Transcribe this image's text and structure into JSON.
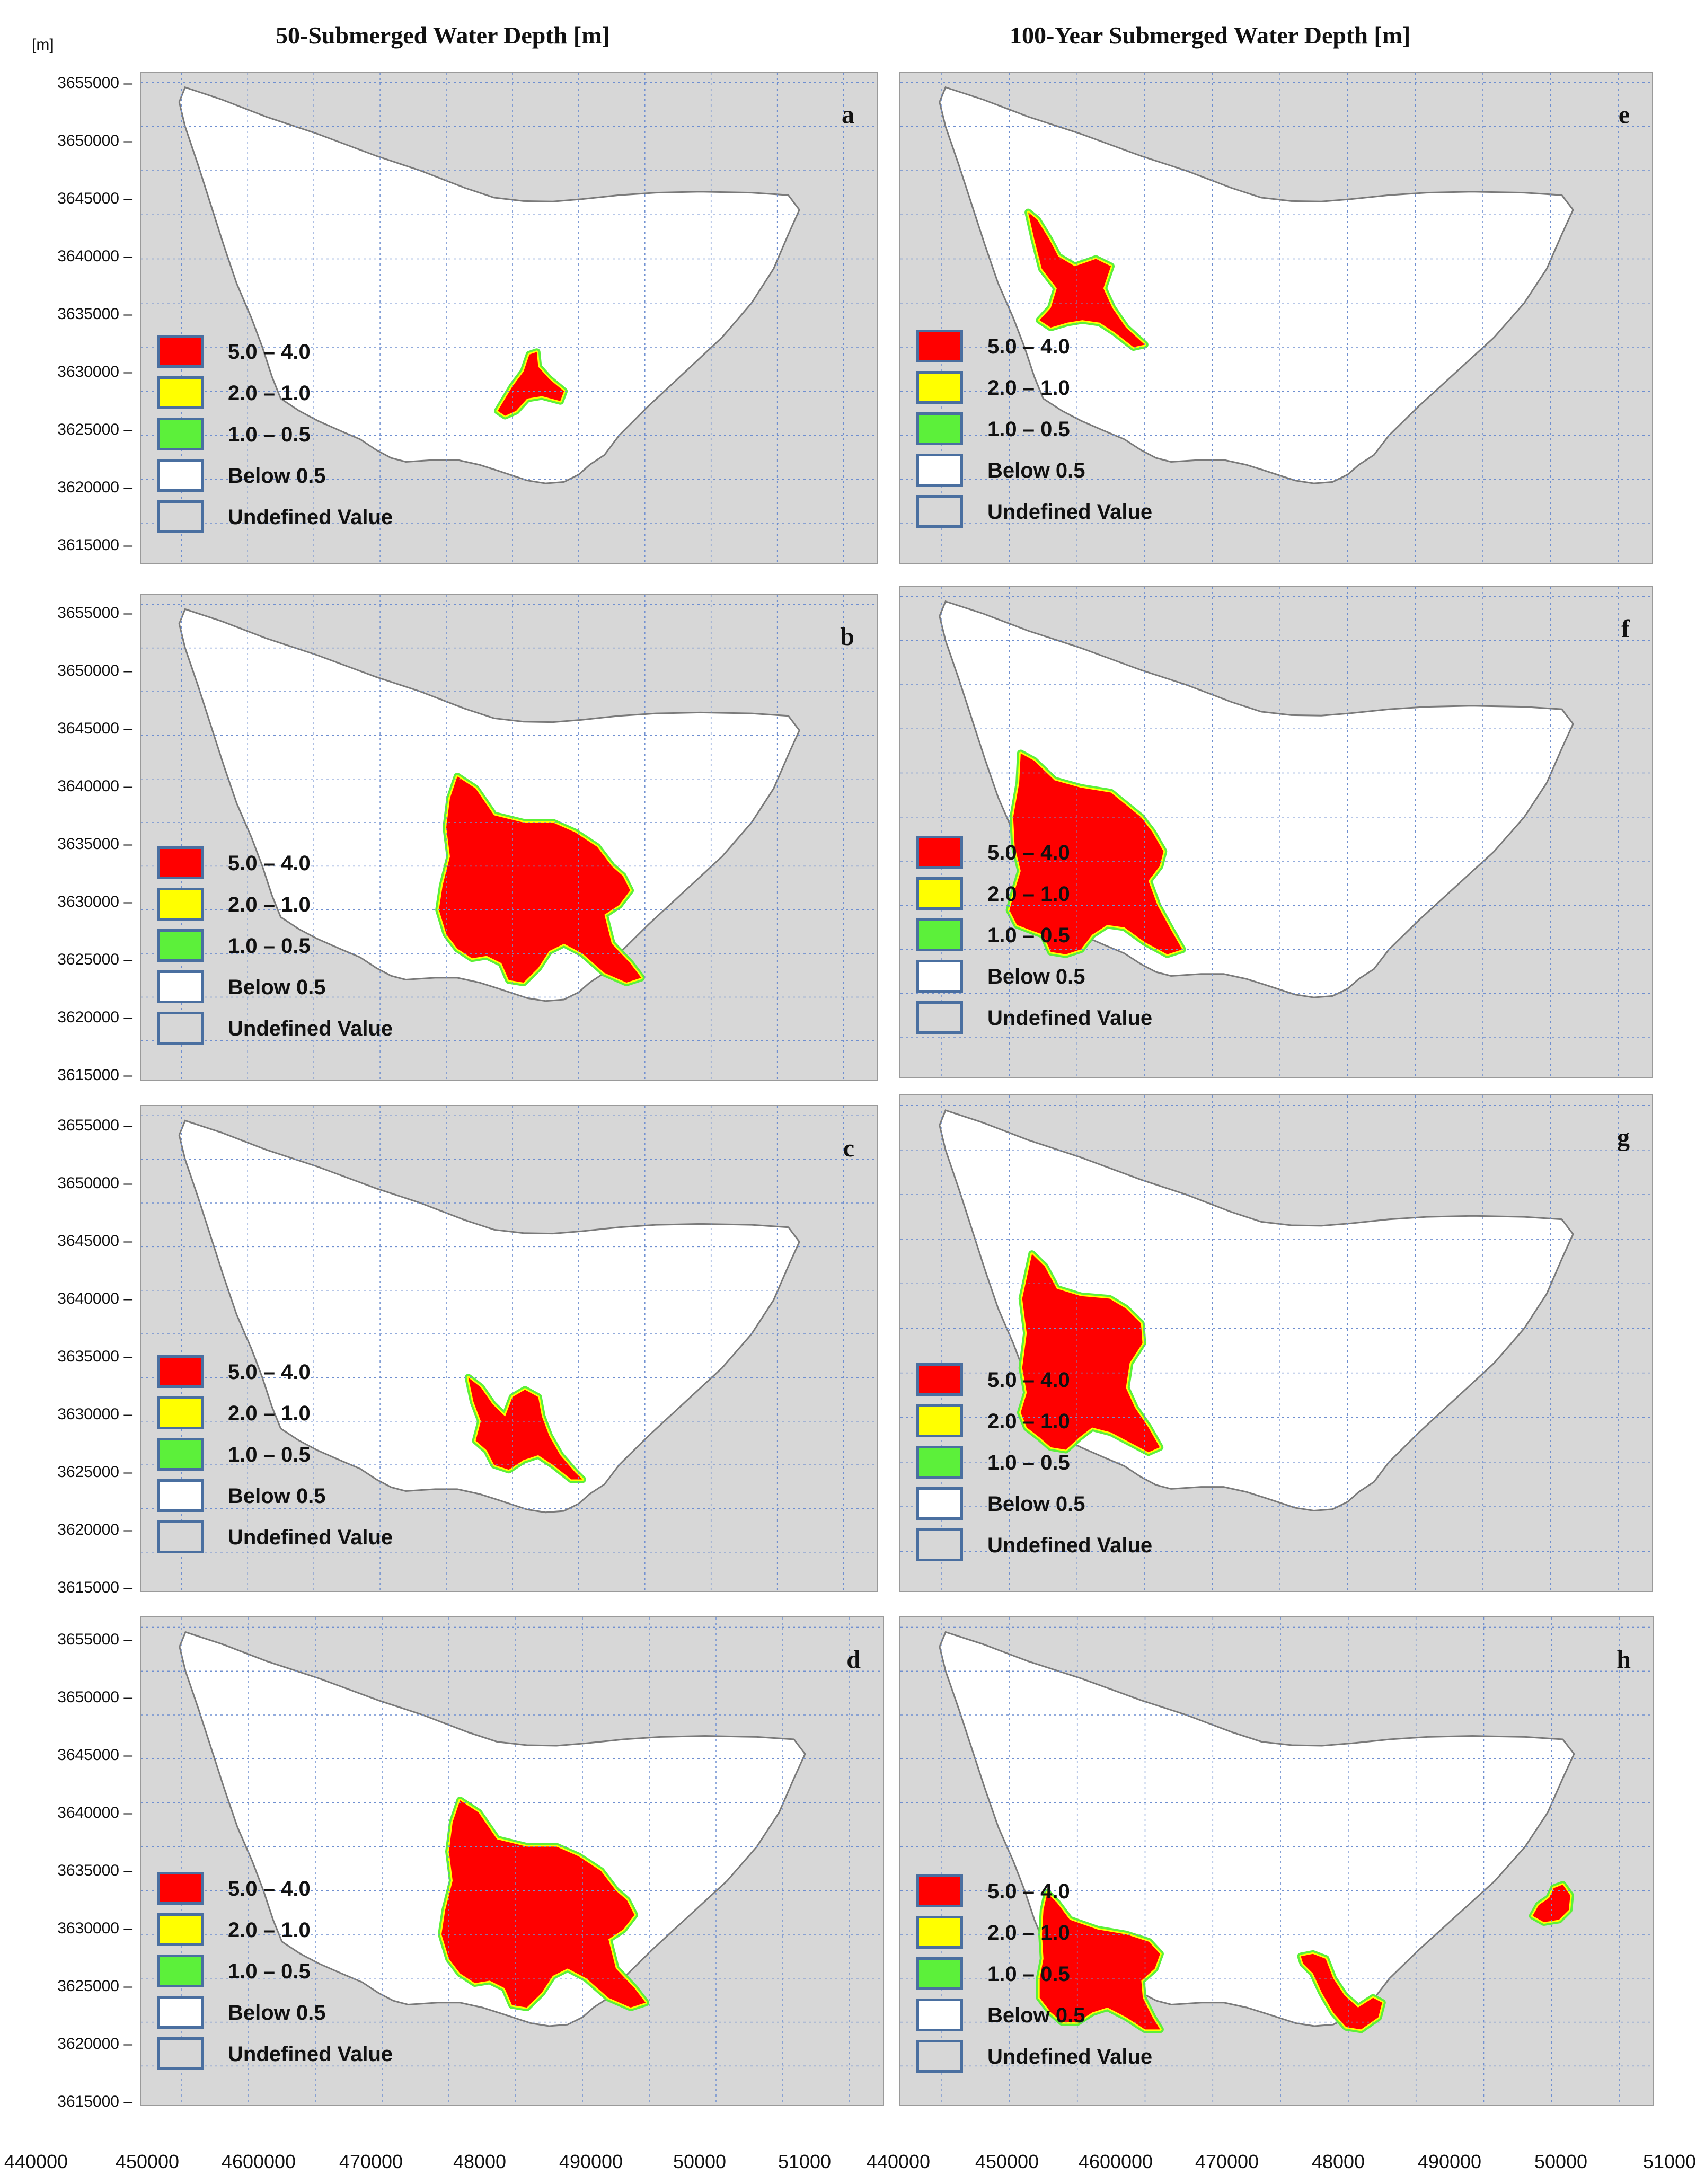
{
  "unit_label": "[m]",
  "titles": {
    "left": "50-Submerged Water Depth [m]",
    "right": "100-Year Submerged Water Depth [m]"
  },
  "legend": [
    {
      "label": "5.0 – 4.0",
      "color": "#ff0000"
    },
    {
      "label": "2.0 – 1.0",
      "color": "#ffff00"
    },
    {
      "label": "1.0 – 0.5",
      "color": "#5cf03a"
    },
    {
      "label": "Below 0.5",
      "color": "#ffffff"
    },
    {
      "label": "Undefined Value",
      "color": "#d7d7d7"
    }
  ],
  "y_ticks": [
    "3655000 –",
    "3650000 –",
    "3645000 –",
    "3640000 –",
    "3635000 –",
    "3630000 –",
    "3625000 –",
    "3620000 –",
    "3615000 –"
  ],
  "x_ticks": [
    "440000",
    "450000",
    "4600000",
    "470000",
    "48000",
    "490000",
    "50000",
    "51000",
    "440000",
    "450000",
    "4600000",
    "470000",
    "48000",
    "490000",
    "50000",
    "51000"
  ],
  "colors": {
    "background": "#d7d7d7",
    "grid": "#6f8fd0",
    "basin": "#ffffff",
    "outline": "#7a7a7a",
    "depth_high": "#ff0000",
    "depth_mid": "#ffff00",
    "depth_low": "#5cf03a"
  },
  "panels": [
    {
      "label": "a",
      "title": "50-Submerged Water Depth [m]"
    },
    {
      "label": "b",
      "title": "50-Submerged Water Depth [m]"
    },
    {
      "label": "c",
      "title": "50-Submerged Water Depth [m]"
    },
    {
      "label": "d",
      "title": "50-Submerged Water Depth [m]"
    },
    {
      "label": "e",
      "title": "100-Year Submerged Water Depth [m]"
    },
    {
      "label": "f",
      "title": "100-Year Submerged Water Depth [m]"
    },
    {
      "label": "g",
      "title": "100-Year Submerged Water Depth [m]"
    },
    {
      "label": "h",
      "title": "100-Year Submerged Water Depth [m]"
    }
  ]
}
